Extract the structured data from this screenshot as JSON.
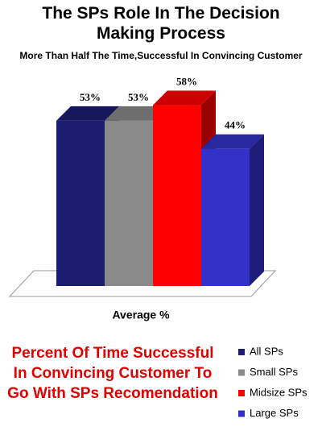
{
  "chart_data": {
    "type": "bar3d",
    "title": "The SPs Role In The Decision Making Process",
    "subtitle": "More Than Half The Time,Successful In Convincing Customer",
    "categories": [
      "Average %"
    ],
    "annotation": "Percent Of Time Successful In Convincing Customer To Go With SPs Recomendation",
    "series": [
      {
        "name": "All SPs",
        "color": "#1c1c72",
        "values": [
          53
        ],
        "value_labels": [
          "53%"
        ]
      },
      {
        "name": "Small SPs",
        "color": "#8a8a8a",
        "values": [
          53
        ],
        "value_labels": [
          "53%"
        ]
      },
      {
        "name": "Midsize SPs",
        "color": "#ff0000",
        "values": [
          58
        ],
        "value_labels": [
          "58%"
        ]
      },
      {
        "name": "Large SPs",
        "color": "#3232c8",
        "values": [
          44
        ],
        "value_labels": [
          "44%"
        ]
      }
    ]
  }
}
